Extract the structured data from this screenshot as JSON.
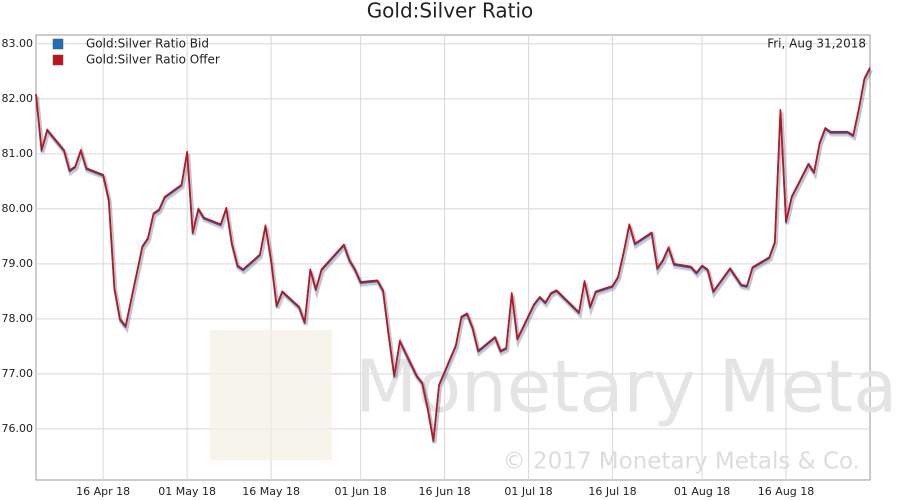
{
  "chart_data": {
    "type": "line",
    "title": "Gold:Silver Ratio",
    "date_label": "Fri, Aug 31,2018",
    "watermark": "Monetary Metals",
    "copyright": "© 2017 Monetary Metals & Co.",
    "x": [
      "2018-04-04",
      "2018-04-05",
      "2018-04-06",
      "2018-04-09",
      "2018-04-10",
      "2018-04-11",
      "2018-04-12",
      "2018-04-13",
      "2018-04-16",
      "2018-04-17",
      "2018-04-18",
      "2018-04-19",
      "2018-04-20",
      "2018-04-23",
      "2018-04-24",
      "2018-04-25",
      "2018-04-26",
      "2018-04-27",
      "2018-04-30",
      "2018-05-01",
      "2018-05-02",
      "2018-05-03",
      "2018-05-04",
      "2018-05-07",
      "2018-05-08",
      "2018-05-09",
      "2018-05-10",
      "2018-05-11",
      "2018-05-14",
      "2018-05-15",
      "2018-05-16",
      "2018-05-17",
      "2018-05-18",
      "2018-05-21",
      "2018-05-22",
      "2018-05-23",
      "2018-05-24",
      "2018-05-25",
      "2018-05-29",
      "2018-05-30",
      "2018-05-31",
      "2018-06-01",
      "2018-06-04",
      "2018-06-05",
      "2018-06-06",
      "2018-06-07",
      "2018-06-08",
      "2018-06-11",
      "2018-06-12",
      "2018-06-13",
      "2018-06-14",
      "2018-06-15",
      "2018-06-18",
      "2018-06-19",
      "2018-06-20",
      "2018-06-21",
      "2018-06-22",
      "2018-06-25",
      "2018-06-26",
      "2018-06-27",
      "2018-06-28",
      "2018-06-29",
      "2018-07-02",
      "2018-07-03",
      "2018-07-04",
      "2018-07-05",
      "2018-07-06",
      "2018-07-09",
      "2018-07-10",
      "2018-07-11",
      "2018-07-12",
      "2018-07-13",
      "2018-07-16",
      "2018-07-17",
      "2018-07-18",
      "2018-07-19",
      "2018-07-20",
      "2018-07-23",
      "2018-07-24",
      "2018-07-25",
      "2018-07-26",
      "2018-07-27",
      "2018-07-30",
      "2018-07-31",
      "2018-08-01",
      "2018-08-02",
      "2018-08-03",
      "2018-08-06",
      "2018-08-07",
      "2018-08-08",
      "2018-08-09",
      "2018-08-10",
      "2018-08-13",
      "2018-08-14",
      "2018-08-15",
      "2018-08-16",
      "2018-08-17",
      "2018-08-20",
      "2018-08-21",
      "2018-08-22",
      "2018-08-23",
      "2018-08-24",
      "2018-08-27",
      "2018-08-28",
      "2018-08-29",
      "2018-08-30",
      "2018-08-31"
    ],
    "series": [
      {
        "name": "Gold:Silver Ratio Bid",
        "color": "#1f6fbf",
        "values": [
          82.07,
          81.05,
          81.42,
          81.05,
          80.68,
          80.75,
          81.05,
          80.72,
          80.6,
          80.15,
          78.55,
          77.98,
          77.85,
          79.3,
          79.45,
          79.9,
          79.97,
          80.2,
          80.42,
          81.02,
          79.55,
          79.98,
          79.82,
          79.7,
          80.0,
          79.35,
          78.95,
          78.88,
          79.15,
          79.68,
          79.05,
          78.22,
          78.48,
          78.2,
          77.92,
          78.88,
          78.52,
          78.88,
          79.33,
          79.05,
          78.88,
          78.65,
          78.68,
          78.5,
          77.7,
          76.95,
          77.58,
          76.95,
          76.82,
          76.35,
          75.77,
          76.78,
          77.5,
          78.02,
          78.08,
          77.82,
          77.4,
          77.65,
          77.4,
          77.45,
          78.45,
          77.62,
          78.25,
          78.38,
          78.28,
          78.45,
          78.5,
          78.2,
          78.1,
          78.67,
          78.2,
          78.48,
          78.58,
          78.75,
          79.2,
          79.7,
          79.35,
          79.55,
          78.9,
          79.05,
          79.28,
          78.98,
          78.93,
          78.82,
          78.95,
          78.88,
          78.48,
          78.9,
          78.75,
          78.6,
          78.58,
          78.92,
          79.1,
          79.38,
          81.78,
          79.75,
          80.2,
          80.8,
          80.65,
          81.18,
          81.45,
          81.38,
          81.38,
          81.32,
          81.8,
          82.35,
          82.55
        ]
      },
      {
        "name": "Gold:Silver Ratio Offer",
        "color": "#c0131a",
        "values": [
          82.09,
          81.07,
          81.44,
          81.07,
          80.7,
          80.77,
          81.07,
          80.74,
          80.62,
          80.17,
          78.57,
          78.0,
          77.87,
          79.32,
          79.47,
          79.92,
          79.99,
          80.22,
          80.44,
          81.04,
          79.57,
          80.0,
          79.84,
          79.72,
          80.02,
          79.37,
          78.97,
          78.9,
          79.17,
          79.7,
          79.07,
          78.24,
          78.5,
          78.22,
          77.94,
          78.9,
          78.54,
          78.9,
          79.35,
          79.07,
          78.9,
          78.67,
          78.7,
          78.52,
          77.72,
          76.97,
          77.6,
          76.97,
          76.84,
          76.37,
          75.79,
          76.8,
          77.52,
          78.04,
          78.1,
          77.84,
          77.42,
          77.67,
          77.42,
          77.47,
          78.47,
          77.64,
          78.27,
          78.4,
          78.3,
          78.47,
          78.52,
          78.22,
          78.12,
          78.69,
          78.22,
          78.5,
          78.6,
          78.77,
          79.22,
          79.72,
          79.37,
          79.57,
          78.92,
          79.07,
          79.3,
          79.0,
          78.95,
          78.84,
          78.97,
          78.9,
          78.5,
          78.92,
          78.77,
          78.62,
          78.6,
          78.94,
          79.12,
          79.4,
          81.8,
          79.77,
          80.22,
          80.82,
          80.67,
          81.2,
          81.47,
          81.4,
          81.4,
          81.34,
          81.82,
          82.37,
          82.57
        ]
      }
    ],
    "xlim": [
      "2018-04-04",
      "2018-08-31"
    ],
    "xticks": [
      {
        "value": "2018-04-16",
        "label": "16 Apr 18"
      },
      {
        "value": "2018-05-01",
        "label": "01 May 18"
      },
      {
        "value": "2018-05-16",
        "label": "16 May 18"
      },
      {
        "value": "2018-06-01",
        "label": "01 Jun 18"
      },
      {
        "value": "2018-06-16",
        "label": "16 Jun 18"
      },
      {
        "value": "2018-07-01",
        "label": "01 Jul 18"
      },
      {
        "value": "2018-07-16",
        "label": "16 Jul 18"
      },
      {
        "value": "2018-08-01",
        "label": "01 Aug 18"
      },
      {
        "value": "2018-08-16",
        "label": "16 Aug 18"
      }
    ],
    "ylim": [
      75.07,
      83.16
    ],
    "yticks": [
      {
        "value": 76,
        "label": "76.00"
      },
      {
        "value": 77,
        "label": "77.00"
      },
      {
        "value": 78,
        "label": "78.00"
      },
      {
        "value": 79,
        "label": "79.00"
      },
      {
        "value": 80,
        "label": "80.00"
      },
      {
        "value": 81,
        "label": "81.00"
      },
      {
        "value": 82,
        "label": "82.00"
      },
      {
        "value": 83,
        "label": "83.00"
      }
    ],
    "grid": true
  }
}
